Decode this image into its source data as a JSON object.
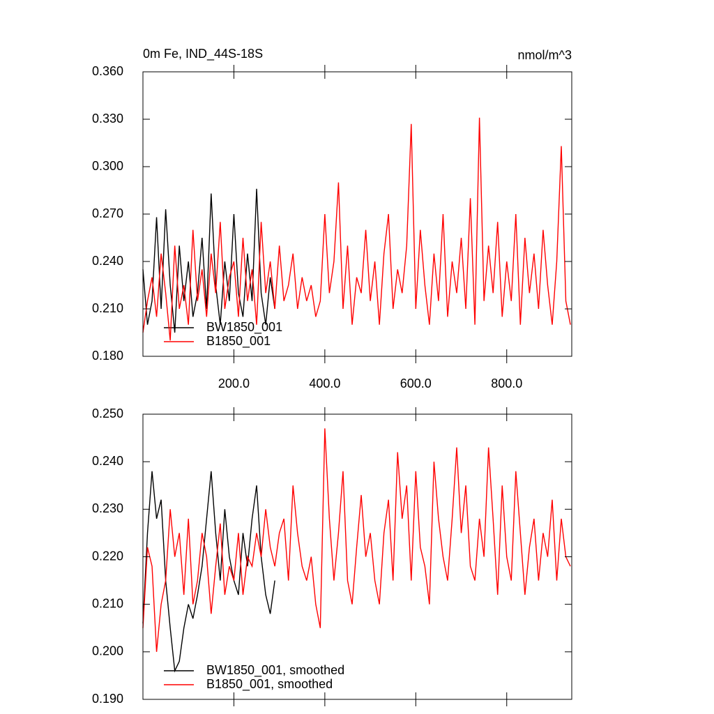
{
  "chart_data": [
    {
      "type": "line",
      "title": "0m Fe, IND_44S-18S",
      "units": "nmol/m^3",
      "xlim": [
        0,
        943
      ],
      "ylim": [
        0.18,
        0.36
      ],
      "xticks": [
        {
          "value": 200,
          "label": "200.0"
        },
        {
          "value": 400,
          "label": "400.0"
        },
        {
          "value": 600,
          "label": "600.0"
        },
        {
          "value": 800,
          "label": "800.0"
        }
      ],
      "yticks": [
        {
          "value": 0.18,
          "label": "0.180"
        },
        {
          "value": 0.21,
          "label": "0.210"
        },
        {
          "value": 0.24,
          "label": "0.240"
        },
        {
          "value": 0.27,
          "label": "0.270"
        },
        {
          "value": 0.3,
          "label": "0.300"
        },
        {
          "value": 0.33,
          "label": "0.330"
        },
        {
          "value": 0.36,
          "label": "0.360"
        }
      ],
      "series": [
        {
          "name": "BW1850_001",
          "color": "#000000",
          "x": [
            0,
            10,
            20,
            30,
            40,
            50,
            60,
            70,
            80,
            90,
            100,
            110,
            120,
            130,
            140,
            150,
            160,
            170,
            180,
            190,
            200,
            210,
            220,
            230,
            240,
            250,
            260,
            270,
            280,
            290
          ],
          "values": [
            0.235,
            0.2,
            0.215,
            0.268,
            0.21,
            0.273,
            0.225,
            0.195,
            0.25,
            0.215,
            0.24,
            0.205,
            0.22,
            0.255,
            0.21,
            0.283,
            0.225,
            0.2,
            0.24,
            0.215,
            0.27,
            0.22,
            0.205,
            0.245,
            0.215,
            0.286,
            0.22,
            0.2,
            0.23,
            0.21
          ]
        },
        {
          "name": "B1850_001",
          "color": "#ff0000",
          "x": [
            0,
            10,
            20,
            30,
            40,
            50,
            60,
            70,
            80,
            90,
            100,
            110,
            120,
            130,
            140,
            150,
            160,
            170,
            180,
            190,
            200,
            210,
            220,
            230,
            240,
            250,
            260,
            270,
            280,
            290,
            300,
            310,
            320,
            330,
            340,
            350,
            360,
            370,
            380,
            390,
            400,
            410,
            420,
            430,
            440,
            450,
            460,
            470,
            480,
            490,
            500,
            510,
            520,
            530,
            540,
            550,
            560,
            570,
            580,
            590,
            600,
            610,
            620,
            630,
            640,
            650,
            660,
            670,
            680,
            690,
            700,
            710,
            720,
            730,
            740,
            750,
            760,
            770,
            780,
            790,
            800,
            810,
            820,
            830,
            840,
            850,
            860,
            870,
            880,
            890,
            900,
            910,
            920,
            930,
            940
          ],
          "values": [
            0.195,
            0.215,
            0.23,
            0.205,
            0.245,
            0.22,
            0.19,
            0.25,
            0.21,
            0.225,
            0.2,
            0.26,
            0.215,
            0.235,
            0.205,
            0.245,
            0.22,
            0.265,
            0.21,
            0.23,
            0.24,
            0.205,
            0.255,
            0.215,
            0.235,
            0.2,
            0.265,
            0.22,
            0.24,
            0.21,
            0.25,
            0.215,
            0.225,
            0.245,
            0.21,
            0.23,
            0.215,
            0.225,
            0.205,
            0.215,
            0.27,
            0.22,
            0.24,
            0.29,
            0.21,
            0.25,
            0.2,
            0.23,
            0.22,
            0.26,
            0.215,
            0.24,
            0.2,
            0.245,
            0.27,
            0.21,
            0.235,
            0.22,
            0.25,
            0.327,
            0.21,
            0.26,
            0.225,
            0.2,
            0.245,
            0.215,
            0.27,
            0.205,
            0.24,
            0.22,
            0.255,
            0.21,
            0.28,
            0.2,
            0.331,
            0.215,
            0.25,
            0.22,
            0.265,
            0.205,
            0.24,
            0.215,
            0.27,
            0.2,
            0.255,
            0.22,
            0.245,
            0.21,
            0.26,
            0.225,
            0.2,
            0.24,
            0.313,
            0.215,
            0.2
          ]
        }
      ]
    },
    {
      "type": "line",
      "xlim": [
        0,
        943
      ],
      "ylim": [
        0.19,
        0.25
      ],
      "xticks": [
        200,
        400,
        600,
        800
      ],
      "yticks": [
        {
          "value": 0.19,
          "label": "0.190"
        },
        {
          "value": 0.2,
          "label": "0.200"
        },
        {
          "value": 0.21,
          "label": "0.210"
        },
        {
          "value": 0.22,
          "label": "0.220"
        },
        {
          "value": 0.23,
          "label": "0.230"
        },
        {
          "value": 0.24,
          "label": "0.240"
        },
        {
          "value": 0.25,
          "label": "0.250"
        }
      ],
      "series": [
        {
          "name": "BW1850_001, smoothed",
          "color": "#000000",
          "x": [
            0,
            10,
            20,
            30,
            40,
            50,
            60,
            70,
            80,
            90,
            100,
            110,
            120,
            130,
            140,
            150,
            160,
            170,
            180,
            190,
            200,
            210,
            220,
            230,
            240,
            250,
            260,
            270,
            280,
            290
          ],
          "values": [
            0.206,
            0.225,
            0.238,
            0.228,
            0.232,
            0.215,
            0.205,
            0.196,
            0.198,
            0.205,
            0.21,
            0.207,
            0.212,
            0.218,
            0.228,
            0.238,
            0.225,
            0.215,
            0.23,
            0.22,
            0.215,
            0.212,
            0.225,
            0.218,
            0.228,
            0.235,
            0.22,
            0.212,
            0.208,
            0.215
          ]
        },
        {
          "name": "B1850_001, smoothed",
          "color": "#ff0000",
          "x": [
            0,
            10,
            20,
            30,
            40,
            50,
            60,
            70,
            80,
            90,
            100,
            110,
            120,
            130,
            140,
            150,
            160,
            170,
            180,
            190,
            200,
            210,
            220,
            230,
            240,
            250,
            260,
            270,
            280,
            290,
            300,
            310,
            320,
            330,
            340,
            350,
            360,
            370,
            380,
            390,
            400,
            410,
            420,
            430,
            440,
            450,
            460,
            470,
            480,
            490,
            500,
            510,
            520,
            530,
            540,
            550,
            560,
            570,
            580,
            590,
            600,
            610,
            620,
            630,
            640,
            650,
            660,
            670,
            680,
            690,
            700,
            710,
            720,
            730,
            740,
            750,
            760,
            770,
            780,
            790,
            800,
            810,
            820,
            830,
            840,
            850,
            860,
            870,
            880,
            890,
            900,
            910,
            920,
            930,
            940
          ],
          "values": [
            0.205,
            0.222,
            0.218,
            0.2,
            0.21,
            0.215,
            0.23,
            0.22,
            0.225,
            0.212,
            0.228,
            0.21,
            0.215,
            0.225,
            0.22,
            0.208,
            0.218,
            0.227,
            0.212,
            0.218,
            0.215,
            0.225,
            0.212,
            0.22,
            0.218,
            0.225,
            0.22,
            0.23,
            0.222,
            0.218,
            0.225,
            0.228,
            0.215,
            0.235,
            0.225,
            0.218,
            0.215,
            0.22,
            0.21,
            0.205,
            0.247,
            0.228,
            0.215,
            0.225,
            0.238,
            0.215,
            0.21,
            0.222,
            0.233,
            0.22,
            0.225,
            0.215,
            0.21,
            0.225,
            0.232,
            0.215,
            0.242,
            0.228,
            0.235,
            0.215,
            0.238,
            0.222,
            0.218,
            0.21,
            0.24,
            0.228,
            0.22,
            0.215,
            0.228,
            0.243,
            0.225,
            0.235,
            0.218,
            0.215,
            0.228,
            0.22,
            0.243,
            0.228,
            0.212,
            0.235,
            0.22,
            0.215,
            0.238,
            0.225,
            0.212,
            0.222,
            0.228,
            0.215,
            0.225,
            0.22,
            0.232,
            0.215,
            0.228,
            0.22,
            0.218
          ]
        }
      ]
    }
  ]
}
